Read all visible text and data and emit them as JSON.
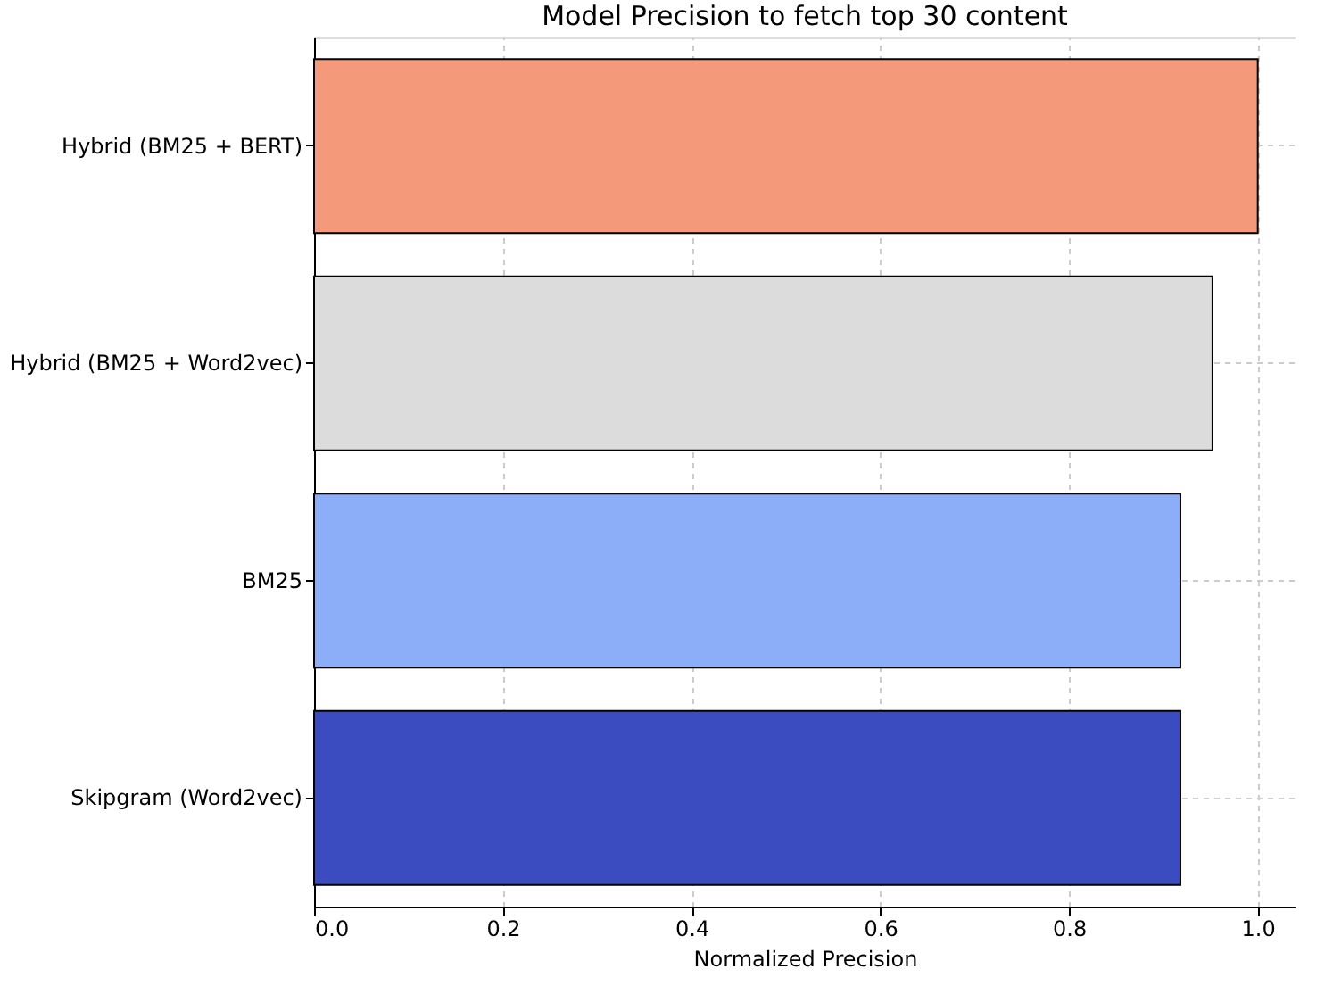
{
  "chart_data": {
    "type": "bar",
    "orientation": "horizontal",
    "title": "Model Precision to fetch top 30 content",
    "xlabel": "Normalized Precision",
    "categories": [
      "Hybrid (BM25 + BERT)",
      "Hybrid (BM25 + Word2vec)",
      "BM25",
      "Skipgram (Word2vec)"
    ],
    "values": [
      1.0,
      0.952,
      0.918,
      0.918
    ],
    "colors": [
      "#f49a7b",
      "#dcdcdc",
      "#8caef8",
      "#3b4cc0"
    ],
    "xlim": [
      0,
      1.04
    ],
    "xticks": [
      {
        "value": 0,
        "label": "0.0"
      },
      0.2,
      0.4,
      0.6,
      0.8,
      {
        "value": 1,
        "label": "1.0"
      }
    ],
    "grid": true
  }
}
